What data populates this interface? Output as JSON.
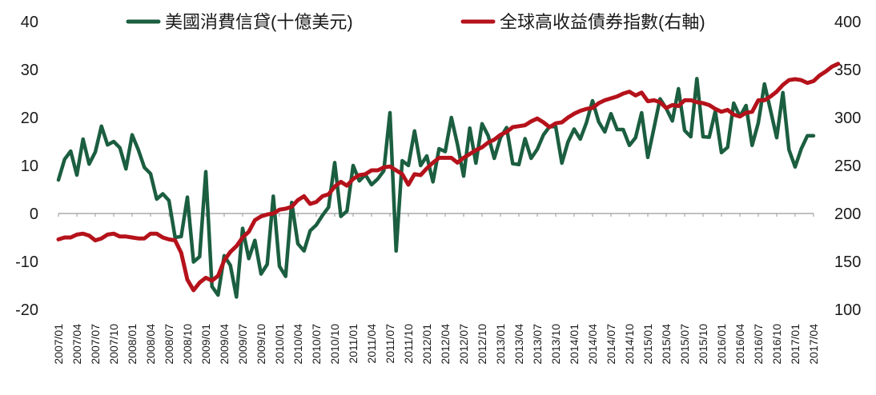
{
  "chart_data": {
    "type": "line",
    "legend_position": "top",
    "grid": false,
    "xlabel": "",
    "ylabel": "",
    "y_left": {
      "ylim": [
        -20,
        40
      ],
      "ticks": [
        -20,
        -10,
        0,
        10,
        20,
        30,
        40
      ]
    },
    "y_right": {
      "ylim": [
        100,
        400
      ],
      "ticks": [
        100,
        150,
        200,
        250,
        300,
        350,
        400
      ]
    },
    "x_tick_labels": [
      "2007/01",
      "2007/04",
      "2007/07",
      "2007/10",
      "2008/01",
      "2008/04",
      "2008/07",
      "2008/10",
      "2009/01",
      "2009/04",
      "2009/07",
      "2009/10",
      "2010/01",
      "2010/04",
      "2010/07",
      "2010/10",
      "2011/01",
      "2011/04",
      "2011/07",
      "2011/10",
      "2012/01",
      "2012/04",
      "2012/07",
      "2012/10",
      "2013/01",
      "2013/04",
      "2013/07",
      "2013/10",
      "2014/01",
      "2014/04",
      "2014/07",
      "2014/10",
      "2015/01",
      "2015/04",
      "2015/07",
      "2015/10",
      "2016/01",
      "2016/04",
      "2016/07",
      "2016/10",
      "2017/01",
      "2017/04"
    ],
    "series": [
      {
        "name": "美國消費信貸(十億美元)",
        "axis": "left",
        "color": "#1b5e40",
        "values": [
          7.0,
          11.3,
          13.0,
          8.0,
          15.5,
          10.3,
          12.8,
          18.2,
          14.3,
          15.0,
          13.7,
          9.3,
          16.4,
          13.3,
          9.6,
          8.3,
          3.0,
          4.1,
          2.7,
          -5.0,
          -4.8,
          3.4,
          -10.1,
          -9.0,
          8.7,
          -15.2,
          -17.0,
          -8.8,
          -10.8,
          -17.4,
          -3.1,
          -9.4,
          -5.6,
          -12.6,
          -10.6,
          3.6,
          -11.0,
          -13.1,
          2.3,
          -6.3,
          -7.8,
          -3.6,
          -2.4,
          -0.4,
          1.3,
          10.6,
          -0.6,
          0.5,
          10.0,
          6.8,
          8.1,
          6.0,
          7.2,
          8.9,
          21.0,
          -7.8,
          11.0,
          10.0,
          17.2,
          10.0,
          12.0,
          6.6,
          13.5,
          12.9,
          20.0,
          14.4,
          7.8,
          17.8,
          10.5,
          18.7,
          16.2,
          11.5,
          15.8,
          17.9,
          10.4,
          10.2,
          15.6,
          11.5,
          13.4,
          16.4,
          18.1,
          18.1,
          10.5,
          14.9,
          17.6,
          15.5,
          18.9,
          23.5,
          19.1,
          17.0,
          20.8,
          17.5,
          17.5,
          14.2,
          15.8,
          21.0,
          11.7,
          17.8,
          23.9,
          21.9,
          19.3,
          26.0,
          17.3,
          16.0,
          28.1,
          16.0,
          15.9,
          21.3,
          12.7,
          13.8,
          23.0,
          20.2,
          22.5,
          14.2,
          18.9,
          27.0,
          21.5,
          15.8,
          25.2,
          13.3,
          9.7,
          13.5,
          16.2,
          16.2
        ]
      },
      {
        "name": "全球高收益債券指數(右軸)",
        "axis": "right",
        "color": "#b5121b",
        "values": [
          173,
          175,
          175,
          178,
          179,
          177,
          172,
          174,
          178,
          179,
          176,
          176,
          175,
          174,
          174,
          179,
          179,
          175,
          173,
          172,
          159,
          131,
          120,
          128,
          133,
          130,
          135,
          151,
          160,
          166,
          175,
          181,
          193,
          197,
          199,
          200,
          204,
          205,
          207,
          214,
          218,
          210,
          212,
          218,
          220,
          228,
          233,
          229,
          236,
          240,
          241,
          245,
          245,
          248,
          249,
          245,
          241,
          230,
          241,
          240,
          247,
          253,
          258,
          258,
          258,
          253,
          258,
          262,
          266,
          269,
          274,
          277,
          282,
          285,
          290,
          291,
          292,
          296,
          299,
          295,
          290,
          294,
          295,
          300,
          304,
          307,
          309,
          310,
          315,
          318,
          320,
          322,
          325,
          327,
          323,
          326,
          317,
          318,
          316,
          310,
          313,
          312,
          318,
          318,
          316,
          315,
          313,
          309,
          306,
          308,
          303,
          301,
          305,
          306,
          318,
          318,
          322,
          327,
          334,
          339,
          340,
          339,
          336,
          338,
          344,
          348,
          353,
          356
        ]
      }
    ]
  }
}
